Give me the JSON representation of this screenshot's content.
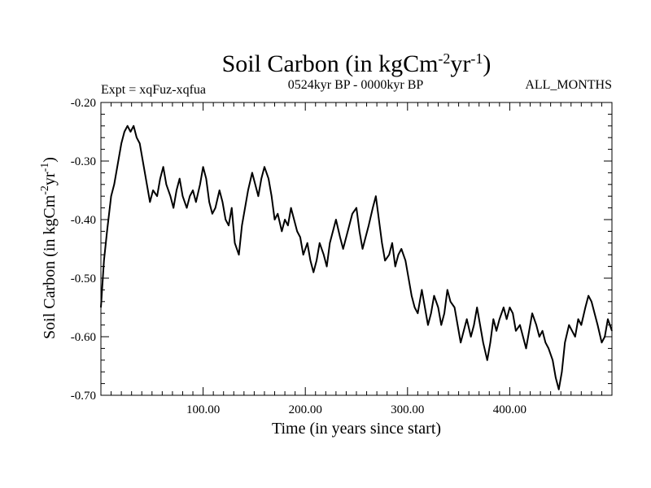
{
  "chart_data": {
    "type": "line",
    "title_main": "Soil Carbon (in kgCm",
    "title_sup1": "-2",
    "title_mid": "yr",
    "title_sup2": "-1",
    "title_end": ")",
    "subtitle_left": "Expt = xqFuz-xqfua",
    "subtitle_center": "0524kyr BP - 0000kyr BP",
    "subtitle_right": "ALL_MONTHS",
    "xlabel": "Time (in years since start)",
    "ylabel_main": "Soil Carbon (in kgCm",
    "ylabel_sup1": "-2",
    "ylabel_mid": "yr",
    "ylabel_sup2": "-1",
    "ylabel_end": ")",
    "xlim": [
      0,
      500
    ],
    "ylim": [
      -0.7,
      -0.2
    ],
    "xticks": [
      100,
      200,
      300,
      400
    ],
    "xtick_labels": [
      "100.00",
      "200.00",
      "300.00",
      "400.00"
    ],
    "yticks": [
      -0.2,
      -0.3,
      -0.4,
      -0.5,
      -0.6,
      -0.7
    ],
    "ytick_labels": [
      "-0.20",
      "-0.30",
      "-0.40",
      "-0.50",
      "-0.60",
      "-0.70"
    ],
    "line_color": "#000000",
    "series": [
      {
        "name": "Soil Carbon",
        "x": [
          0,
          3,
          6,
          10,
          13,
          16,
          20,
          23,
          26,
          29,
          32,
          35,
          38,
          42,
          45,
          48,
          51,
          55,
          58,
          61,
          64,
          68,
          71,
          74,
          77,
          80,
          84,
          87,
          90,
          93,
          97,
          100,
          103,
          106,
          109,
          112,
          116,
          119,
          122,
          125,
          128,
          131,
          135,
          138,
          141,
          144,
          148,
          151,
          154,
          157,
          160,
          164,
          167,
          170,
          173,
          177,
          180,
          183,
          186,
          189,
          192,
          195,
          198,
          202,
          205,
          208,
          211,
          214,
          218,
          221,
          224,
          227,
          230,
          234,
          237,
          240,
          243,
          246,
          250,
          253,
          256,
          259,
          262,
          266,
          269,
          272,
          275,
          278,
          282,
          285,
          288,
          291,
          294,
          298,
          301,
          304,
          307,
          310,
          314,
          317,
          320,
          323,
          326,
          330,
          333,
          336,
          339,
          342,
          346,
          349,
          352,
          355,
          358,
          362,
          365,
          368,
          371,
          374,
          378,
          381,
          384,
          387,
          390,
          394,
          397,
          400,
          403,
          406,
          410,
          413,
          416,
          419,
          422,
          426,
          429,
          432,
          435,
          438,
          442,
          445,
          448,
          451,
          454,
          458,
          461,
          464,
          467,
          470,
          474,
          477,
          480,
          483,
          486,
          490,
          493,
          496,
          500
        ],
        "y": [
          -0.55,
          -0.47,
          -0.42,
          -0.36,
          -0.34,
          -0.31,
          -0.27,
          -0.25,
          -0.24,
          -0.25,
          -0.24,
          -0.26,
          -0.27,
          -0.31,
          -0.34,
          -0.37,
          -0.35,
          -0.36,
          -0.33,
          -0.31,
          -0.34,
          -0.36,
          -0.38,
          -0.35,
          -0.33,
          -0.36,
          -0.38,
          -0.36,
          -0.35,
          -0.37,
          -0.34,
          -0.31,
          -0.33,
          -0.37,
          -0.39,
          -0.38,
          -0.35,
          -0.37,
          -0.4,
          -0.41,
          -0.38,
          -0.44,
          -0.46,
          -0.41,
          -0.38,
          -0.35,
          -0.32,
          -0.34,
          -0.36,
          -0.33,
          -0.31,
          -0.33,
          -0.36,
          -0.4,
          -0.39,
          -0.42,
          -0.4,
          -0.41,
          -0.38,
          -0.4,
          -0.42,
          -0.43,
          -0.46,
          -0.44,
          -0.47,
          -0.49,
          -0.47,
          -0.44,
          -0.46,
          -0.48,
          -0.44,
          -0.42,
          -0.4,
          -0.43,
          -0.45,
          -0.43,
          -0.41,
          -0.39,
          -0.38,
          -0.42,
          -0.45,
          -0.43,
          -0.41,
          -0.38,
          -0.36,
          -0.4,
          -0.44,
          -0.47,
          -0.46,
          -0.44,
          -0.48,
          -0.46,
          -0.45,
          -0.47,
          -0.5,
          -0.53,
          -0.55,
          -0.56,
          -0.52,
          -0.55,
          -0.58,
          -0.56,
          -0.53,
          -0.55,
          -0.58,
          -0.56,
          -0.52,
          -0.54,
          -0.55,
          -0.58,
          -0.61,
          -0.59,
          -0.57,
          -0.6,
          -0.58,
          -0.55,
          -0.58,
          -0.61,
          -0.64,
          -0.61,
          -0.57,
          -0.59,
          -0.57,
          -0.55,
          -0.57,
          -0.55,
          -0.56,
          -0.59,
          -0.58,
          -0.6,
          -0.62,
          -0.59,
          -0.56,
          -0.58,
          -0.6,
          -0.59,
          -0.61,
          -0.62,
          -0.64,
          -0.67,
          -0.69,
          -0.66,
          -0.61,
          -0.58,
          -0.59,
          -0.6,
          -0.57,
          -0.58,
          -0.55,
          -0.53,
          -0.54,
          -0.56,
          -0.58,
          -0.61,
          -0.6,
          -0.57,
          -0.59
        ]
      }
    ]
  }
}
